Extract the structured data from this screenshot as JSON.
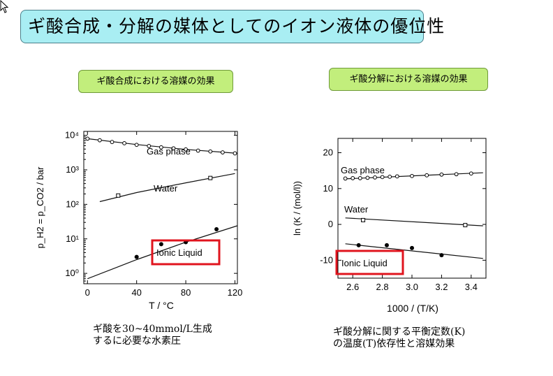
{
  "slide": {
    "title": "ギ酸合成・分解の媒体としてのイオン液体の優位性",
    "label_left": "ギ酸合成における溶媒の効果",
    "label_right": "ギ酸分解における溶媒の効果",
    "caption_left": [
      "ギ酸を30~40mmol/L生成",
      "するに必要な水素圧"
    ],
    "caption_right": [
      "ギ酸分解に関する平衡定数(K)",
      "の温度(T)依存性と溶媒効果"
    ]
  },
  "colors": {
    "title_bg": "#a9eef3",
    "label_bg": "#c2ee7c",
    "highlight": "#e0141e"
  },
  "chart_data": [
    {
      "type": "scatter",
      "ylabel": "p_H2 = p_CO2 / bar",
      "xlabel": "T / °C",
      "xlim": [
        -3,
        122
      ],
      "ylim": [
        0.5,
        13000
      ],
      "yscale": "log",
      "xticks": [
        0,
        40,
        80,
        120
      ],
      "yticks": [
        1,
        10,
        100,
        1000,
        10000
      ],
      "yticklabels": [
        "10⁰",
        "10¹",
        "10²",
        "10³",
        "10⁴"
      ],
      "highlight_label": "Ionic Liquid",
      "series": [
        {
          "name": "Gas phase",
          "marker": "open-circle",
          "points": [
            [
              0,
              8000
            ],
            [
              10,
              7200
            ],
            [
              20,
              6400
            ],
            [
              30,
              5900
            ],
            [
              40,
              5300
            ],
            [
              50,
              4900
            ],
            [
              60,
              4500
            ],
            [
              70,
              4200
            ],
            [
              80,
              3900
            ],
            [
              90,
              3600
            ],
            [
              100,
              3400
            ],
            [
              110,
              3200
            ],
            [
              120,
              3000
            ]
          ],
          "fit": [
            [
              0,
              8000
            ],
            [
              40,
              5400
            ],
            [
              80,
              3900
            ],
            [
              122,
              3000
            ]
          ]
        },
        {
          "name": "Water",
          "marker": "open-square",
          "points": [
            [
              25,
              180
            ],
            [
              100,
              580
            ]
          ],
          "fit": [
            [
              10,
              120
            ],
            [
              40,
              220
            ],
            [
              80,
              420
            ],
            [
              120,
              780
            ]
          ]
        },
        {
          "name": "Ionic Liquid",
          "marker": "filled-circle",
          "points": [
            [
              40,
              3
            ],
            [
              60,
              7
            ],
            [
              80,
              8
            ],
            [
              105,
              19
            ]
          ],
          "fit": [
            [
              0,
              0.7
            ],
            [
              40,
              2.5
            ],
            [
              80,
              8
            ],
            [
              122,
              24
            ]
          ]
        }
      ]
    },
    {
      "type": "scatter",
      "ylabel": "ln (K / (mol/l))",
      "xlabel": "1000 / (T/K)",
      "xlim": [
        2.5,
        3.5
      ],
      "ylim": [
        -15,
        24
      ],
      "xticks": [
        2.6,
        2.8,
        3.0,
        3.2,
        3.4
      ],
      "xticklabels": [
        "2.6",
        "2.8",
        "3.0",
        "3.2",
        "3.4"
      ],
      "yticks": [
        -10,
        0,
        10,
        20
      ],
      "yticklabels": [
        "-10",
        "0",
        "10",
        "20"
      ],
      "highlight_label": "Ionic Liquid",
      "series": [
        {
          "name": "Gas phase",
          "marker": "open-circle",
          "points": [
            [
              2.55,
              12.8
            ],
            [
              2.6,
              12.9
            ],
            [
              2.65,
              12.9
            ],
            [
              2.7,
              13
            ],
            [
              2.75,
              13.1
            ],
            [
              2.8,
              13.2
            ],
            [
              2.85,
              13.3
            ],
            [
              2.9,
              13.4
            ],
            [
              3.0,
              13.5
            ],
            [
              3.1,
              13.7
            ],
            [
              3.2,
              13.9
            ],
            [
              3.3,
              14
            ],
            [
              3.4,
              14.2
            ]
          ],
          "fit": [
            [
              2.55,
              12.7
            ],
            [
              3.48,
              14.4
            ]
          ]
        },
        {
          "name": "Water",
          "marker": "open-square",
          "points": [
            [
              2.67,
              1.2
            ],
            [
              3.36,
              -0.2
            ]
          ],
          "fit": [
            [
              2.55,
              1.8
            ],
            [
              3.48,
              -0.4
            ]
          ]
        },
        {
          "name": "Ionic Liquid",
          "marker": "filled-circle",
          "points": [
            [
              2.64,
              -5.8
            ],
            [
              2.83,
              -5.8
            ],
            [
              3.0,
              -6.6
            ],
            [
              3.2,
              -8.6
            ]
          ],
          "fit": [
            [
              2.55,
              -5.4
            ],
            [
              3.48,
              -9.5
            ]
          ]
        }
      ]
    }
  ]
}
